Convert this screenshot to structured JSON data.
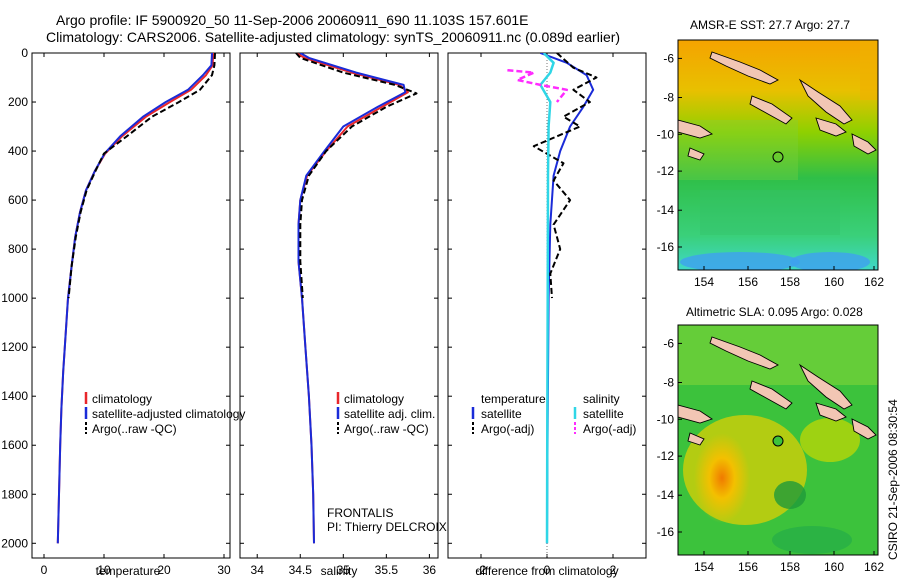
{
  "header": {
    "line1": "Argo profile: IF 5900920_50 11-Sep-2006 20060911_690 11.103S 157.601E",
    "line2": "Climatology: CARS2006. Satellite-adjusted climatology: synTS_20060911.nc (0.089d earlier)"
  },
  "footer_stamp": "CSIRO 21-Sep-2006 08:30:54",
  "colors": {
    "climatology": "#e8262b",
    "satellite": "#1a2bd8",
    "argo": "#000000",
    "salinity_satellite": "#2fd6e6",
    "salinity_argo": "#ff2bff",
    "land": "#f2c6b4"
  },
  "chart_data": [
    {
      "type": "line",
      "panel": "temperature",
      "xlabel": "temperature",
      "xlim": [
        -2,
        31
      ],
      "xticks": [
        0,
        10,
        20,
        30
      ],
      "ylim": [
        0,
        2060
      ],
      "yticks": [
        0,
        200,
        400,
        600,
        800,
        1000,
        1200,
        1400,
        1600,
        1800,
        2000
      ],
      "y_reversed": true,
      "legend": [
        "climatology",
        "satellite-adjusted climatology",
        "Argo(..raw -QC)"
      ],
      "series": [
        {
          "name": "climatology",
          "points": [
            [
              28.2,
              0
            ],
            [
              28.1,
              50
            ],
            [
              27.0,
              90
            ],
            [
              24.5,
              150
            ],
            [
              21.0,
              200
            ],
            [
              17.0,
              260
            ],
            [
              13.0,
              340
            ],
            [
              10.2,
              410
            ],
            [
              8.5,
              480
            ],
            [
              7.0,
              560
            ],
            [
              6.0,
              650
            ],
            [
              5.2,
              750
            ],
            [
              4.6,
              870
            ],
            [
              4.0,
              1000
            ],
            [
              3.6,
              1150
            ],
            [
              3.2,
              1300
            ],
            [
              2.9,
              1450
            ],
            [
              2.7,
              1600
            ],
            [
              2.5,
              1800
            ],
            [
              2.3,
              2000
            ]
          ]
        },
        {
          "name": "satellite-adjusted climatology",
          "points": [
            [
              28.0,
              0
            ],
            [
              27.9,
              50
            ],
            [
              26.5,
              90
            ],
            [
              24.0,
              150
            ],
            [
              20.3,
              200
            ],
            [
              16.5,
              260
            ],
            [
              12.7,
              340
            ],
            [
              10.1,
              410
            ],
            [
              8.5,
              480
            ],
            [
              7.0,
              560
            ],
            [
              6.0,
              650
            ],
            [
              5.2,
              750
            ],
            [
              4.6,
              870
            ],
            [
              4.0,
              1000
            ],
            [
              3.6,
              1150
            ],
            [
              3.2,
              1300
            ],
            [
              2.9,
              1450
            ],
            [
              2.7,
              1600
            ],
            [
              2.5,
              1800
            ],
            [
              2.3,
              2000
            ]
          ]
        },
        {
          "name": "Argo(..raw -QC)",
          "points": [
            [
              28.5,
              0
            ],
            [
              28.4,
              50
            ],
            [
              28.0,
              90
            ],
            [
              26.0,
              150
            ],
            [
              22.5,
              200
            ],
            [
              18.0,
              260
            ],
            [
              13.8,
              340
            ],
            [
              10.0,
              410
            ],
            [
              8.6,
              480
            ],
            [
              7.1,
              560
            ],
            [
              6.1,
              650
            ],
            [
              5.3,
              750
            ],
            [
              4.6,
              870
            ],
            [
              4.1,
              1000
            ]
          ]
        }
      ]
    },
    {
      "type": "line",
      "panel": "salinity",
      "xlabel": "salinity",
      "xlim": [
        33.8,
        36.1
      ],
      "xticks": [
        34,
        34.5,
        35,
        35.5,
        36
      ],
      "ylim": [
        0,
        2060
      ],
      "y_reversed": true,
      "legend": [
        "climatology",
        "satellite adj. clim.",
        "Argo(..raw -QC)"
      ],
      "annotation": [
        "FRONTALIS",
        "PI: Thierry DELCROIX"
      ],
      "series": [
        {
          "name": "climatology",
          "points": [
            [
              34.45,
              0
            ],
            [
              34.55,
              20
            ],
            [
              35.1,
              80
            ],
            [
              35.65,
              130
            ],
            [
              35.75,
              160
            ],
            [
              35.45,
              220
            ],
            [
              35.05,
              300
            ],
            [
              34.8,
              400
            ],
            [
              34.58,
              500
            ],
            [
              34.5,
              600
            ],
            [
              34.48,
              700
            ],
            [
              34.48,
              850
            ],
            [
              34.52,
              1000
            ],
            [
              34.56,
              1200
            ],
            [
              34.6,
              1400
            ],
            [
              34.63,
              1600
            ],
            [
              34.65,
              1800
            ],
            [
              34.66,
              2000
            ]
          ]
        },
        {
          "name": "satellite adj. clim.",
          "points": [
            [
              34.5,
              0
            ],
            [
              34.6,
              20
            ],
            [
              35.15,
              80
            ],
            [
              35.7,
              130
            ],
            [
              35.72,
              160
            ],
            [
              35.4,
              220
            ],
            [
              35.0,
              300
            ],
            [
              34.78,
              400
            ],
            [
              34.57,
              500
            ],
            [
              34.5,
              600
            ],
            [
              34.48,
              700
            ],
            [
              34.48,
              850
            ],
            [
              34.52,
              1000
            ],
            [
              34.56,
              1200
            ],
            [
              34.6,
              1400
            ],
            [
              34.63,
              1600
            ],
            [
              34.65,
              1800
            ],
            [
              34.66,
              2000
            ]
          ]
        },
        {
          "name": "Argo(..raw -QC)",
          "points": [
            [
              34.45,
              0
            ],
            [
              34.5,
              20
            ],
            [
              35.0,
              80
            ],
            [
              35.6,
              130
            ],
            [
              35.85,
              165
            ],
            [
              35.5,
              220
            ],
            [
              35.1,
              300
            ],
            [
              34.8,
              400
            ],
            [
              34.6,
              500
            ],
            [
              34.52,
              600
            ],
            [
              34.5,
              700
            ],
            [
              34.5,
              850
            ],
            [
              34.53,
              1000
            ]
          ]
        }
      ]
    },
    {
      "type": "line",
      "panel": "difference",
      "xlabel": "difference from climatology",
      "xlim": [
        -3,
        3
      ],
      "xticks": [
        -2,
        0,
        2
      ],
      "ylim": [
        0,
        2060
      ],
      "y_reversed": true,
      "legend": [
        "temperature",
        "satellite",
        "Argo(-adj)",
        "salinity",
        "satellite",
        "Argo(-adj)"
      ],
      "series": [
        {
          "name": "temperature satellite",
          "points": [
            [
              -0.2,
              0
            ],
            [
              0.6,
              40
            ],
            [
              1.2,
              90
            ],
            [
              1.4,
              150
            ],
            [
              1.1,
              220
            ],
            [
              0.7,
              300
            ],
            [
              0.4,
              400
            ],
            [
              0.2,
              500
            ],
            [
              0.1,
              700
            ],
            [
              0.05,
              1000
            ],
            [
              0.02,
              1500
            ],
            [
              0,
              2000
            ]
          ]
        },
        {
          "name": "temperature Argo(-adj)",
          "points": [
            [
              0.3,
              0
            ],
            [
              0.8,
              60
            ],
            [
              1.5,
              100
            ],
            [
              0.8,
              150
            ],
            [
              1.3,
              200
            ],
            [
              0.5,
              260
            ],
            [
              1.0,
              300
            ],
            [
              -0.4,
              380
            ],
            [
              0.5,
              450
            ],
            [
              0.2,
              520
            ],
            [
              0.7,
              600
            ],
            [
              0.2,
              700
            ],
            [
              0.4,
              800
            ],
            [
              0.1,
              900
            ],
            [
              0.15,
              1000
            ]
          ]
        },
        {
          "name": "salinity satellite",
          "points": [
            [
              -0.1,
              0
            ],
            [
              0.2,
              40
            ],
            [
              0.1,
              80
            ],
            [
              -0.2,
              130
            ],
            [
              0.1,
              200
            ],
            [
              0.05,
              300
            ],
            [
              0.03,
              500
            ],
            [
              0.02,
              1000
            ],
            [
              0.01,
              1500
            ],
            [
              0,
              2000
            ]
          ]
        },
        {
          "name": "salinity Argo(-adj)",
          "points": [
            [
              -1.2,
              70
            ],
            [
              -0.4,
              80
            ],
            [
              -0.9,
              110
            ],
            [
              -0.2,
              130
            ],
            [
              0.6,
              150
            ],
            [
              0.3,
              200
            ]
          ]
        }
      ]
    }
  ],
  "maps": [
    {
      "title": "AMSR-E SST: 27.7 Argo: 27.7",
      "yticks": [
        "-6",
        "-8",
        "-10",
        "-12",
        "-14",
        "-16"
      ],
      "xticks": [
        "154",
        "156",
        "158",
        "160",
        "162"
      ]
    },
    {
      "title": "Altimetric SLA: 0.095 Argo: 0.028",
      "yticks": [
        "-6",
        "-8",
        "-10",
        "-12",
        "-14",
        "-16"
      ],
      "xticks": [
        "154",
        "156",
        "158",
        "160",
        "162"
      ]
    }
  ]
}
